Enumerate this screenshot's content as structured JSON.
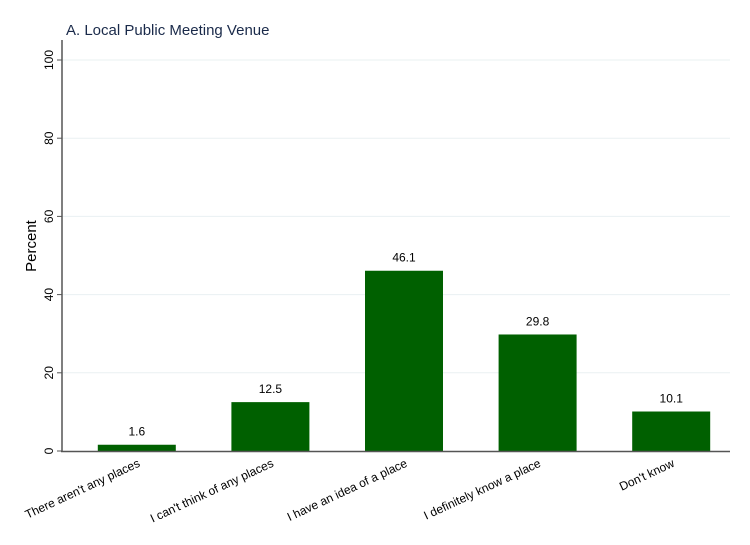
{
  "chart_data": {
    "type": "bar",
    "title": "A. Local Public Meeting Venue",
    "xlabel": "",
    "ylabel": "Percent",
    "ylim": [
      0,
      100
    ],
    "yticks": [
      0,
      20,
      40,
      60,
      80,
      100
    ],
    "grid": true,
    "categories": [
      "There aren't any places",
      "I can't think of any places",
      "I have an idea of a place",
      "I definitely know a place",
      "Don't know"
    ],
    "values": [
      1.6,
      12.5,
      46.1,
      29.8,
      10.1
    ],
    "value_labels": [
      "1.6",
      "12.5",
      "46.1",
      "29.8",
      "10.1"
    ],
    "bar_color": "#006000"
  }
}
